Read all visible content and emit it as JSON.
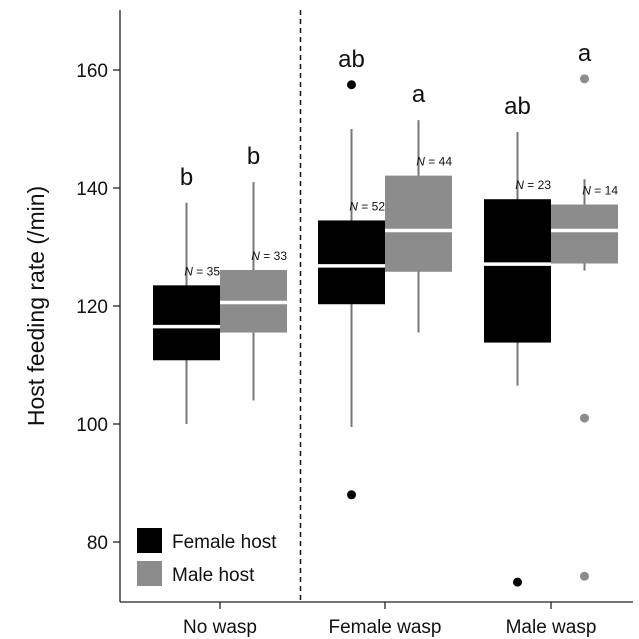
{
  "chart_data": {
    "type": "boxplot",
    "ylabel": "Host feeding rate (/min)",
    "ylim": [
      70,
      170
    ],
    "yticks": [
      80,
      100,
      120,
      140,
      160
    ],
    "categories": [
      "No wasp",
      "Female wasp",
      "Male wasp"
    ],
    "divider_after_category": "No wasp",
    "legend_position": "bottom-left",
    "series": [
      {
        "name": "Female host",
        "color": "#000000",
        "median_color": "#ffffff",
        "boxes": [
          {
            "category": "No wasp",
            "q1": 110.8,
            "median": 116.5,
            "q3": 123.5,
            "whisker_low": 100,
            "whisker_high": 137.5,
            "outliers": [],
            "n_label": "N",
            "n_value": "= 35",
            "sig": "b"
          },
          {
            "category": "Female wasp",
            "q1": 120.3,
            "median": 126.8,
            "q3": 134.5,
            "whisker_low": 99.5,
            "whisker_high": 150,
            "outliers": [
              88,
              157.5
            ],
            "n_label": "N",
            "n_value": "= 52",
            "sig": "ab"
          },
          {
            "category": "Male wasp",
            "q1": 113.8,
            "median": 127.1,
            "q3": 138.1,
            "whisker_low": 106.5,
            "whisker_high": 149.5,
            "outliers": [
              73.2
            ],
            "n_label": "N",
            "n_value": "= 23",
            "sig": "ab"
          }
        ]
      },
      {
        "name": "Male host",
        "color": "#8c8c8c",
        "median_color": "#ffffff",
        "boxes": [
          {
            "category": "No wasp",
            "q1": 115.5,
            "median": 120.6,
            "q3": 126.1,
            "whisker_low": 104,
            "whisker_high": 141,
            "outliers": [],
            "n_label": "N",
            "n_value": "= 33",
            "sig": "b"
          },
          {
            "category": "Female wasp",
            "q1": 125.8,
            "median": 132.8,
            "q3": 142.1,
            "whisker_low": 115.5,
            "whisker_high": 151.5,
            "outliers": [],
            "n_label": "N",
            "n_value": "= 44",
            "sig": "a"
          },
          {
            "category": "Male wasp",
            "q1": 127.2,
            "median": 132.8,
            "q3": 137.2,
            "whisker_low": 126,
            "whisker_high": 141.5,
            "outliers": [
              158.5,
              101,
              74.2
            ],
            "n_label": "N",
            "n_value": "= 14",
            "sig": "a"
          }
        ]
      }
    ]
  }
}
